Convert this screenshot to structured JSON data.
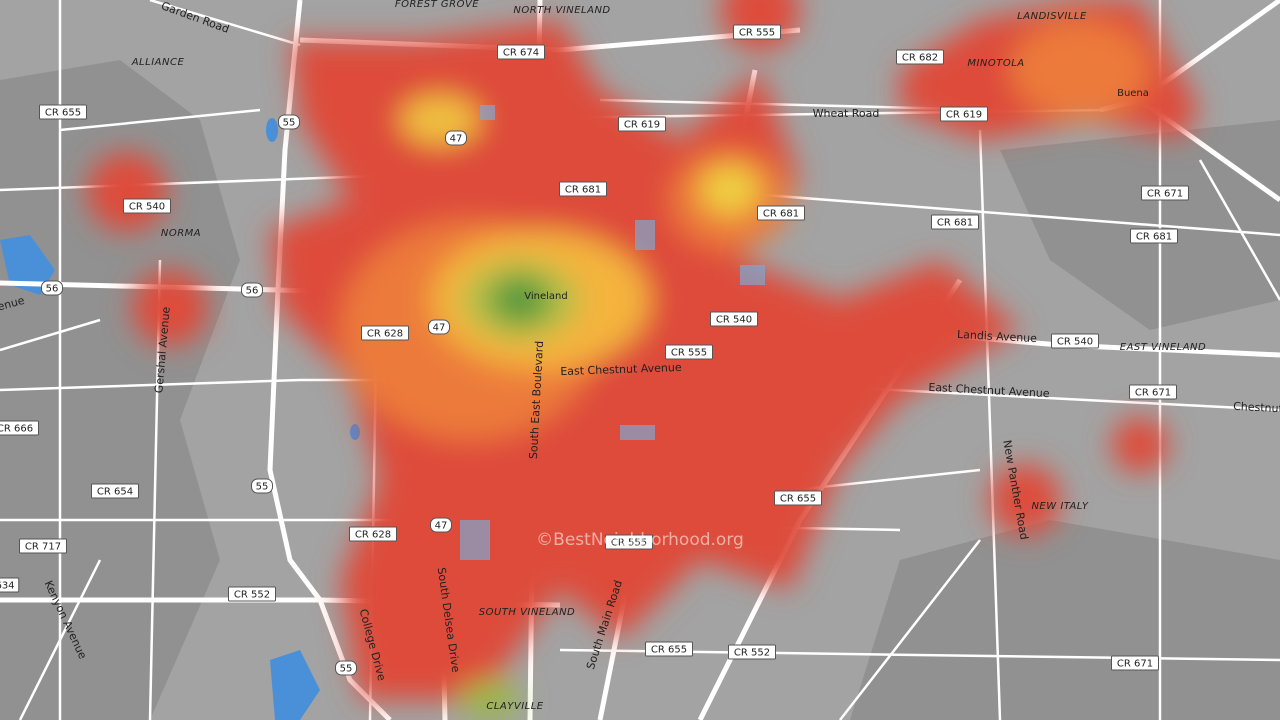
{
  "places": [
    "FOREST GROVE",
    "NORTH VINELAND",
    "ALLIANCE",
    "NORMA",
    "MINOTOLA",
    "LANDISVILLE",
    "Buena",
    "Vineland",
    "SOUTH VINELAND",
    "CLAYVILLE",
    "NEW ITALY",
    "EAST VINELAND"
  ],
  "route_shields": [
    "CR 674",
    "CR 555",
    "CR 655",
    "CR 619",
    "CR 682",
    "CR 681",
    "CR 671",
    "CR 540",
    "56",
    "55",
    "47",
    "CR 628",
    "CR 666",
    "CR 654",
    "CR 717",
    "634",
    "CR 552"
  ],
  "streets": [
    "Garden Road",
    "Wheat Road",
    "Landis Avenue",
    "East Chestnut Avenue",
    "Chestnut",
    "South East Boulevard",
    "South Delsea Drive",
    "College Drive",
    "South Main Road",
    "New Panther Road",
    "Gershal Avenue",
    "Kenyon Avenue",
    "venue"
  ],
  "watermark": "©BestNeighborhood.org"
}
